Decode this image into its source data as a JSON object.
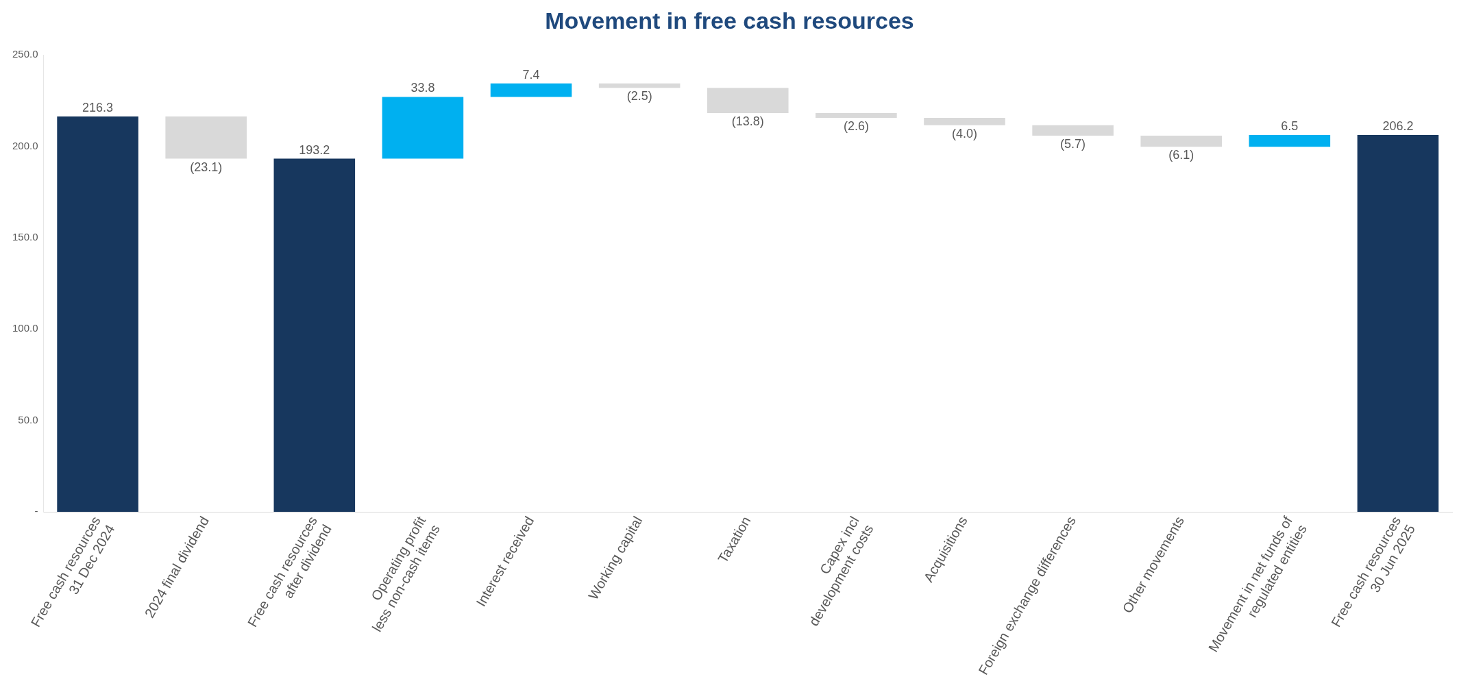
{
  "chart_data": {
    "type": "bar",
    "title": "Movement in free cash resources",
    "categories": [
      "Free cash resources\n31 Dec 2024",
      "2024 final dividend",
      "Free cash resources\nafter dividend",
      "Operating profit\nless non-cash items",
      "Interest received",
      "Working capital",
      "Taxation",
      "Capex incl\ndevelopment costs",
      "Acquisitions",
      "Foreign exchange differences",
      "Other movements",
      "Movement in net funds of\nregulated entities",
      "Free cash resources\n30 Jun 2025"
    ],
    "values": [
      216.3,
      -23.1,
      193.2,
      33.8,
      7.4,
      -2.5,
      -13.8,
      -2.6,
      -4.0,
      -5.7,
      -6.1,
      6.5,
      206.2
    ],
    "base": [
      0,
      216.3,
      0,
      193.2,
      227.0,
      234.4,
      231.9,
      218.1,
      215.5,
      211.5,
      205.8,
      199.7,
      0
    ],
    "colors": [
      "#17375e",
      "#d9d9d9",
      "#17375e",
      "#00b0f0",
      "#00b0f0",
      "#d9d9d9",
      "#d9d9d9",
      "#d9d9d9",
      "#d9d9d9",
      "#d9d9d9",
      "#d9d9d9",
      "#00b0f0",
      "#17375e"
    ],
    "value_labels": [
      "216.3",
      "(23.1)",
      "193.2",
      "33.8",
      "7.4",
      "(2.5)",
      "(13.8)",
      "(2.6)",
      "(4.0)",
      "(5.7)",
      "(6.1)",
      "6.5",
      "206.2"
    ],
    "ylim": [
      0,
      250
    ],
    "yticks": [
      {
        "value": 0,
        "label": "-"
      },
      {
        "value": 50,
        "label": "50.0"
      },
      {
        "value": 100,
        "label": "100.0"
      },
      {
        "value": 150,
        "label": "150.0"
      },
      {
        "value": 200,
        "label": "200.0"
      },
      {
        "value": 250,
        "label": "250.0"
      }
    ],
    "grid": false,
    "legend": false
  }
}
